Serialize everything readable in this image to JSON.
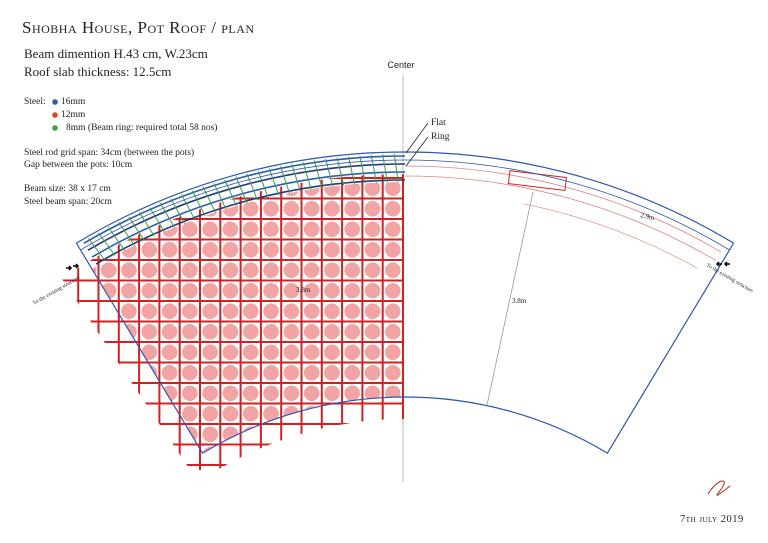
{
  "header": {
    "title": "Shobha House, Pot Roof / plan",
    "beam": "Beam dimention H.43 cm, W.23cm",
    "slab": "Roof slab thickness: 12.5cm"
  },
  "legend": {
    "label": "Steel:",
    "items": [
      "16mm",
      "12mm",
      "8mm (Beam ring: required total 58 nos)"
    ]
  },
  "notes": [
    "Steel rod grid span: 34cm (between the pots)",
    "Gap between the pots: 10cm",
    "Beam size: 38 x 17 cm",
    "Steel beam span: 20cm"
  ],
  "labels": {
    "center": "Center",
    "flat": "Flat",
    "ring": "Ring",
    "arc_length": "2.9m",
    "depth_left": "3.8m",
    "depth_right": "3.8m",
    "existing_left": "To the existing structure",
    "existing_right": "To the existing structure"
  },
  "date": "7th july 2019"
}
